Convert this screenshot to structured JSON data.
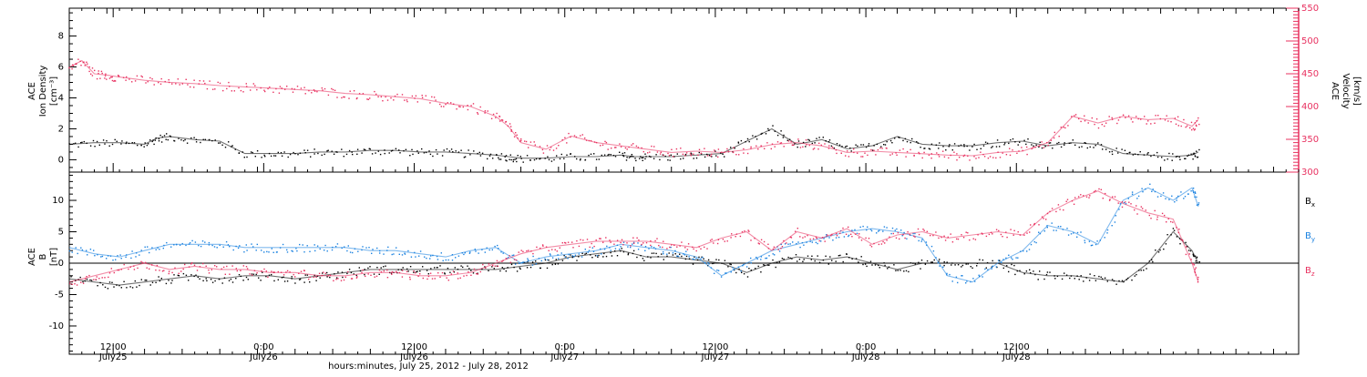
{
  "chart_data": [
    {
      "type": "scatter",
      "panel": "top",
      "ylabel_left": [
        "ACE",
        "Ion Density",
        "[cm⁻³]"
      ],
      "ylabel_right": [
        "ACE",
        "Velocity",
        "[km/s]"
      ],
      "left_axis": {
        "ylim": [
          -0.8,
          9.8
        ],
        "ticks": [
          0,
          2,
          4,
          6,
          8
        ],
        "tick_labels": [
          "0",
          "2",
          "4",
          "6",
          "8"
        ],
        "color": "#000000"
      },
      "right_axis": {
        "ylim": [
          300,
          550
        ],
        "ticks": [
          300,
          350,
          400,
          450,
          500,
          550
        ],
        "tick_labels": [
          "300",
          "350",
          "400",
          "450",
          "500",
          "550"
        ],
        "color": "#e8305f"
      },
      "series": [
        {
          "axis": "left",
          "color": "#000000",
          "x": [
            0,
            2,
            4,
            6,
            7,
            8,
            10,
            12,
            14,
            16,
            18,
            20,
            22,
            24,
            26,
            28,
            30,
            32,
            34,
            35,
            36,
            38,
            40,
            42,
            44,
            45,
            46,
            48,
            50,
            52,
            54,
            56,
            58,
            60,
            62,
            64,
            66,
            68,
            70,
            72,
            74,
            76,
            78,
            80,
            82,
            84,
            86,
            88,
            89.5,
            90
          ],
          "y": [
            1.0,
            1.1,
            1.1,
            1.0,
            1.4,
            1.5,
            1.3,
            1.2,
            0.4,
            0.4,
            0.4,
            0.5,
            0.5,
            0.6,
            0.6,
            0.5,
            0.5,
            0.4,
            0.3,
            0.2,
            0.1,
            0.1,
            0.2,
            0.2,
            0.3,
            0.2,
            0.2,
            0.2,
            0.3,
            0.4,
            1.2,
            2.0,
            1.0,
            1.3,
            0.7,
            0.9,
            1.5,
            1.0,
            0.9,
            0.9,
            1.1,
            1.2,
            0.9,
            1.1,
            1.0,
            0.4,
            0.3,
            0.2,
            0.3,
            0.5
          ]
        },
        {
          "axis": "right",
          "color": "#e8305f",
          "x": [
            0,
            1,
            2,
            3,
            4,
            6,
            8,
            10,
            12,
            14,
            16,
            18,
            20,
            22,
            24,
            26,
            28,
            30,
            32,
            34,
            35,
            36,
            38,
            40,
            42,
            44,
            46,
            48,
            50,
            52,
            54,
            56,
            58,
            60,
            62,
            64,
            66,
            68,
            70,
            72,
            74,
            76,
            78,
            80,
            82,
            84,
            86,
            88,
            89.5,
            90
          ],
          "y": [
            460,
            470,
            450,
            448,
            445,
            440,
            437,
            435,
            432,
            430,
            428,
            426,
            424,
            420,
            418,
            415,
            412,
            405,
            400,
            385,
            370,
            345,
            335,
            355,
            345,
            340,
            335,
            330,
            332,
            330,
            334,
            342,
            345,
            340,
            330,
            332,
            330,
            328,
            326,
            325,
            330,
            332,
            345,
            385,
            375,
            385,
            380,
            382,
            370,
            380
          ]
        }
      ]
    },
    {
      "type": "scatter",
      "panel": "bottom",
      "ylabel_left": [
        "ACE",
        "B",
        "[nT]"
      ],
      "left_axis": {
        "ylim": [
          -14.5,
          14.5
        ],
        "ticks": [
          -10,
          -5,
          0,
          5,
          10
        ],
        "tick_labels": [
          "-10",
          "-5",
          "0",
          "5",
          "10"
        ],
        "color": "#000000"
      },
      "zero_line": true,
      "series": [
        {
          "name": "B",
          "subscript": "x",
          "color": "#000000",
          "x": [
            0,
            2,
            4,
            6,
            8,
            10,
            12,
            14,
            16,
            18,
            20,
            22,
            24,
            26,
            28,
            30,
            32,
            34,
            36,
            38,
            40,
            42,
            44,
            46,
            48,
            50,
            52,
            54,
            56,
            58,
            60,
            62,
            64,
            66,
            68,
            70,
            72,
            74,
            76,
            78,
            80,
            82,
            84,
            86,
            88,
            89.5,
            90
          ],
          "y": [
            -2.5,
            -3.0,
            -3.5,
            -3.0,
            -2.5,
            -2.0,
            -2.5,
            -2.0,
            -2.0,
            -2.5,
            -2.0,
            -1.5,
            -1.0,
            -1.0,
            -1.0,
            -1.0,
            -1.0,
            -1.0,
            -0.5,
            0.0,
            1.0,
            1.5,
            2.0,
            1.0,
            1.0,
            0.5,
            0.0,
            -1.5,
            0.0,
            1.0,
            0.5,
            1.0,
            0.0,
            -1.0,
            0.0,
            0.0,
            0.0,
            0.0,
            -1.5,
            -2.0,
            -2.0,
            -2.5,
            -3.0,
            0.0,
            5.0,
            2.0,
            0.0
          ]
        },
        {
          "name": "B",
          "subscript": "y",
          "color": "#1a82e0",
          "x": [
            0,
            2,
            4,
            6,
            8,
            10,
            12,
            14,
            16,
            18,
            20,
            22,
            24,
            26,
            28,
            30,
            32,
            34,
            36,
            38,
            40,
            42,
            44,
            46,
            48,
            50,
            52,
            54,
            56,
            58,
            60,
            62,
            64,
            66,
            68,
            70,
            72,
            74,
            76,
            78,
            80,
            82,
            84,
            86,
            88,
            89.5,
            90
          ],
          "y": [
            2.5,
            1.5,
            1.0,
            2.0,
            3.0,
            3.0,
            3.0,
            2.5,
            2.5,
            2.5,
            2.5,
            2.5,
            2.0,
            2.0,
            1.5,
            1.0,
            2.0,
            2.5,
            0.0,
            1.0,
            1.5,
            2.0,
            3.0,
            2.5,
            2.0,
            1.0,
            -2.0,
            0.0,
            2.0,
            3.0,
            4.0,
            5.0,
            5.5,
            5.0,
            4.0,
            -2.0,
            -3.0,
            0.0,
            2.0,
            6.0,
            5.0,
            3.0,
            10.0,
            12.0,
            10.0,
            12.0,
            9.0
          ]
        },
        {
          "name": "B",
          "subscript": "z",
          "color": "#e8305f",
          "x": [
            0,
            2,
            4,
            6,
            8,
            10,
            12,
            14,
            16,
            18,
            20,
            22,
            24,
            26,
            28,
            30,
            32,
            34,
            36,
            38,
            40,
            42,
            44,
            46,
            48,
            50,
            52,
            54,
            56,
            58,
            60,
            62,
            64,
            66,
            68,
            70,
            72,
            74,
            76,
            78,
            80,
            82,
            84,
            86,
            88,
            89.5,
            90
          ],
          "y": [
            -3.0,
            -2.0,
            -1.0,
            0.0,
            -1.0,
            -0.5,
            -1.0,
            -1.0,
            -1.5,
            -1.5,
            -2.0,
            -2.0,
            -1.5,
            -1.5,
            -2.0,
            -2.0,
            -1.5,
            0.0,
            1.5,
            2.5,
            3.0,
            3.5,
            3.5,
            3.5,
            3.0,
            2.5,
            4.0,
            5.0,
            2.0,
            5.0,
            4.0,
            5.5,
            3.0,
            4.5,
            5.0,
            4.0,
            4.5,
            5.0,
            4.5,
            8.0,
            10.0,
            11.5,
            9.5,
            8.0,
            7.0,
            0.0,
            -3.0
          ]
        }
      ]
    }
  ],
  "x_axis": {
    "xlim": [
      0,
      98
    ],
    "major_ticks": [
      {
        "x": 3.5,
        "time": "12:00",
        "date": "July25"
      },
      {
        "x": 15.5,
        "time": "0:00",
        "date": "July26"
      },
      {
        "x": 27.5,
        "time": "12:00",
        "date": "July26"
      },
      {
        "x": 39.5,
        "time": "0:00",
        "date": "July27"
      },
      {
        "x": 51.5,
        "time": "12:00",
        "date": "July27"
      },
      {
        "x": 63.5,
        "time": "0:00",
        "date": "July28"
      },
      {
        "x": 75.5,
        "time": "12:00",
        "date": "July28"
      }
    ],
    "xlabel": "hours:minutes, July 25, 2012 - July 28, 2012"
  }
}
